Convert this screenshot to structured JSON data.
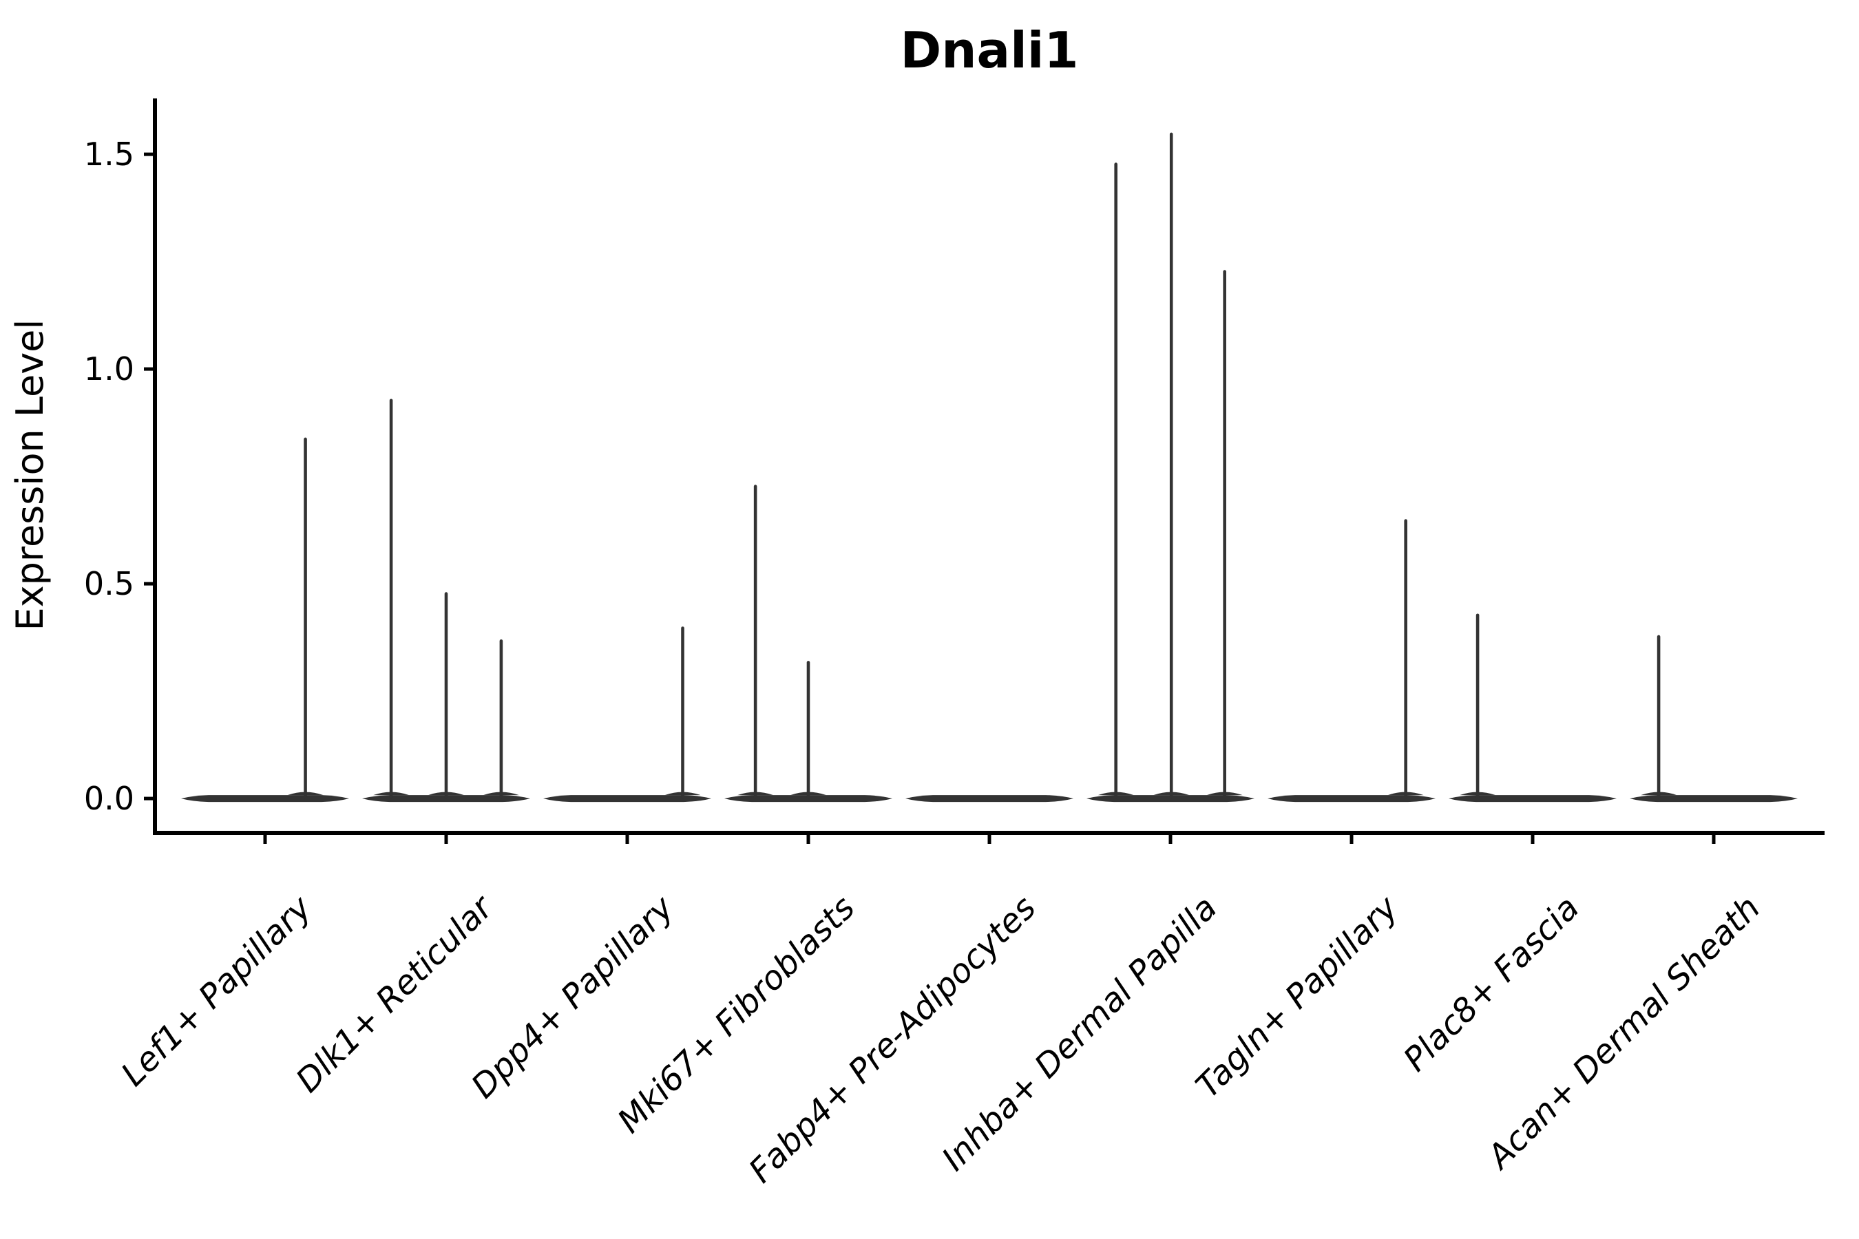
{
  "chart_data": {
    "type": "violin",
    "title": "Dnali1",
    "ylabel": "Expression Level",
    "xlabel": "",
    "grid": false,
    "legend": null,
    "ylim": [
      -0.08,
      1.63
    ],
    "ytick_values": [
      0.0,
      0.5,
      1.0,
      1.5
    ],
    "ytick_labels": [
      "0.0",
      "0.5",
      "1.0",
      "1.5"
    ],
    "categories": [
      "Lef1+ Papillary",
      "Dlk1+ Reticular",
      "Dpp4+ Papillary",
      "Mki67+ Fibroblasts",
      "Fabp4+ Pre-Adipocytes",
      "Inhba+ Dermal Papilla",
      "Tagln+ Papillary",
      "Plac8+ Fascia",
      "Acan+ Dermal Sheath"
    ],
    "violins": [
      {
        "category": "Lef1+ Papillary",
        "zero_bulk": true,
        "spikes": [
          {
            "offset": 0.48,
            "max": 0.84
          }
        ]
      },
      {
        "category": "Dlk1+ Reticular",
        "zero_bulk": true,
        "spikes": [
          {
            "offset": -0.655,
            "max": 0.93
          },
          {
            "offset": 0.0,
            "max": 0.48
          },
          {
            "offset": 0.655,
            "max": 0.37
          }
        ]
      },
      {
        "category": "Dpp4+ Papillary",
        "zero_bulk": true,
        "spikes": [
          {
            "offset": 0.66,
            "max": 0.4
          }
        ]
      },
      {
        "category": "Mki67+ Fibroblasts",
        "zero_bulk": true,
        "spikes": [
          {
            "offset": -0.63,
            "max": 0.73
          },
          {
            "offset": 0.0,
            "max": 0.32
          }
        ]
      },
      {
        "category": "Fabp4+ Pre-Adipocytes",
        "zero_bulk": true,
        "spikes": []
      },
      {
        "category": "Inhba+ Dermal Papilla",
        "zero_bulk": true,
        "spikes": [
          {
            "offset": -0.65,
            "max": 1.48
          },
          {
            "offset": 0.01,
            "max": 1.55
          },
          {
            "offset": 0.645,
            "max": 1.23
          }
        ]
      },
      {
        "category": "Tagln+ Papillary",
        "zero_bulk": true,
        "spikes": [
          {
            "offset": 0.645,
            "max": 0.65
          }
        ]
      },
      {
        "category": "Plac8+ Fascia",
        "zero_bulk": true,
        "spikes": [
          {
            "offset": -0.655,
            "max": 0.43
          }
        ]
      },
      {
        "category": "Acan+ Dermal Sheath",
        "zero_bulk": true,
        "spikes": [
          {
            "offset": -0.655,
            "max": 0.38
          }
        ]
      }
    ],
    "colors": {
      "violin": "#333333",
      "axis": "#000000",
      "text": "#000000",
      "background": "#ffffff"
    }
  }
}
